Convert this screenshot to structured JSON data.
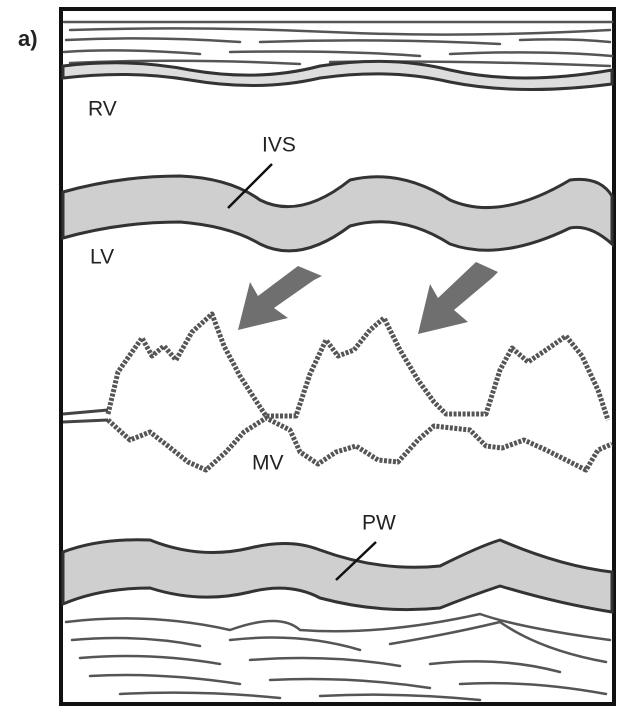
{
  "panel_label": "a)",
  "labels": {
    "rv": "RV",
    "ivs": "IVS",
    "lv": "LV",
    "mv": "MV",
    "pw": "PW"
  }
}
